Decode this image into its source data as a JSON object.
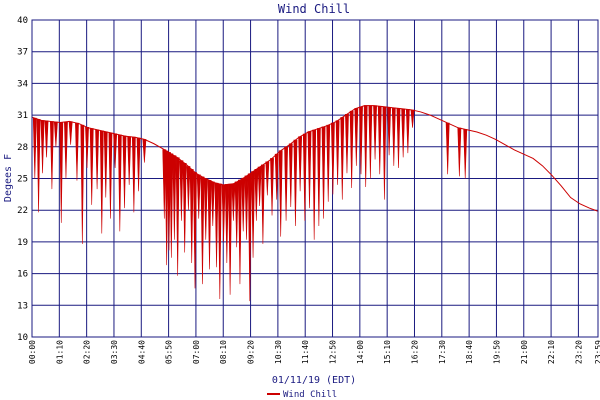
{
  "chart_data": {
    "type": "line",
    "title": "Wind Chill",
    "xlabel": "01/11/19 (EDT)",
    "ylabel": "Degees F",
    "ylim": [
      10,
      40
    ],
    "xlim_hours": [
      0,
      24.17
    ],
    "grid": true,
    "legend_position": "bottom-center",
    "yticks": [
      "10",
      "13",
      "16",
      "19",
      "22",
      "25",
      "28",
      "31",
      "34",
      "37",
      "40"
    ],
    "xtick_labels": [
      "00:00",
      "01:10",
      "02:20",
      "03:30",
      "04:40",
      "05:50",
      "07:00",
      "08:10",
      "09:20",
      "10:30",
      "11:40",
      "12:50",
      "14:00",
      "15:10",
      "16:20",
      "17:30",
      "18:40",
      "19:50",
      "21:00",
      "22:10",
      "23:20",
      "23:59"
    ],
    "colors": {
      "series": "#cc0000",
      "grid": "#1a1a80",
      "title": "#1a1a80",
      "text": "#000000"
    },
    "series": [
      {
        "name": "Wind Chill",
        "x": [
          0.0,
          0.4,
          0.8,
          1.2,
          1.6,
          2.0,
          2.4,
          2.8,
          3.2,
          3.6,
          4.0,
          4.4,
          4.8,
          5.2,
          5.6,
          5.9,
          6.2,
          6.6,
          7.0,
          7.4,
          7.8,
          8.17,
          8.6,
          9.0,
          9.4,
          9.8,
          10.2,
          10.6,
          11.0,
          11.4,
          11.8,
          12.2,
          12.6,
          13.0,
          13.4,
          13.8,
          14.2,
          14.6,
          15.0,
          15.4,
          15.8,
          16.2,
          16.6,
          17.0,
          17.4,
          17.8,
          18.2,
          18.6,
          19.0,
          19.4,
          19.8,
          20.2,
          20.6,
          21.0,
          21.4,
          21.8,
          22.2,
          22.6,
          23.0,
          23.4,
          23.8,
          24.17
        ],
        "y": [
          30.8,
          30.5,
          30.4,
          30.3,
          30.4,
          30.2,
          29.8,
          29.6,
          29.4,
          29.2,
          29.0,
          28.9,
          28.7,
          28.3,
          27.8,
          27.4,
          27.0,
          26.3,
          25.5,
          25.0,
          24.6,
          24.4,
          24.5,
          25.0,
          25.6,
          26.2,
          26.8,
          27.6,
          28.2,
          28.9,
          29.4,
          29.7,
          30.0,
          30.4,
          31.0,
          31.6,
          31.9,
          31.9,
          31.8,
          31.7,
          31.6,
          31.5,
          31.3,
          31.0,
          30.6,
          30.2,
          29.8,
          29.6,
          29.4,
          29.1,
          28.7,
          28.2,
          27.7,
          27.3,
          26.9,
          26.2,
          25.3,
          24.3,
          23.2,
          22.6,
          22.2,
          21.9
        ]
      }
    ],
    "dips": {
      "x": [
        0.12,
        0.28,
        0.45,
        0.62,
        0.85,
        1.02,
        1.25,
        1.45,
        1.65,
        1.92,
        2.15,
        2.35,
        2.55,
        2.78,
        2.98,
        3.15,
        3.35,
        3.55,
        3.75,
        3.95,
        4.15,
        4.35,
        4.55,
        4.8,
        5.65,
        5.75,
        5.85,
        5.95,
        6.08,
        6.22,
        6.38,
        6.52,
        6.68,
        6.82,
        6.96,
        7.12,
        7.28,
        7.42,
        7.58,
        7.72,
        7.88,
        8.02,
        8.18,
        8.32,
        8.46,
        8.6,
        8.74,
        8.88,
        9.02,
        9.16,
        9.3,
        9.44,
        9.58,
        9.72,
        9.86,
        10.05,
        10.25,
        10.45,
        10.62,
        10.85,
        11.05,
        11.25,
        11.45,
        11.65,
        11.85,
        12.05,
        12.25,
        12.45,
        12.65,
        12.85,
        13.05,
        13.25,
        13.45,
        13.65,
        13.85,
        14.05,
        14.25,
        14.45,
        14.65,
        14.85,
        15.05,
        15.25,
        15.45,
        15.65,
        15.85,
        16.05,
        16.25,
        17.75,
        18.25,
        18.5
      ],
      "y": [
        25.0,
        21.8,
        25.5,
        27.0,
        24.0,
        28.0,
        20.8,
        25.0,
        28.2,
        24.8,
        18.8,
        26.0,
        22.5,
        24.0,
        19.8,
        23.2,
        21.2,
        26.0,
        20.0,
        22.2,
        24.4,
        21.8,
        23.8,
        26.5,
        21.2,
        16.8,
        18.2,
        17.5,
        19.2,
        15.8,
        21.0,
        18.0,
        22.0,
        17.0,
        14.6,
        21.2,
        15.0,
        19.2,
        16.4,
        20.5,
        16.6,
        13.6,
        19.0,
        17.0,
        14.0,
        21.0,
        18.5,
        15.0,
        20.0,
        19.2,
        13.4,
        17.5,
        21.0,
        22.4,
        18.8,
        23.4,
        21.5,
        23.0,
        19.5,
        21.0,
        22.3,
        20.5,
        23.8,
        21.0,
        22.2,
        19.2,
        20.5,
        21.2,
        22.8,
        23.5,
        24.4,
        23.0,
        25.5,
        24.1,
        26.2,
        25.4,
        24.2,
        25.0,
        26.8,
        25.4,
        23.0,
        27.2,
        26.2,
        26.0,
        27.0,
        27.4,
        29.8,
        25.4,
        25.2,
        25.0
      ]
    }
  }
}
